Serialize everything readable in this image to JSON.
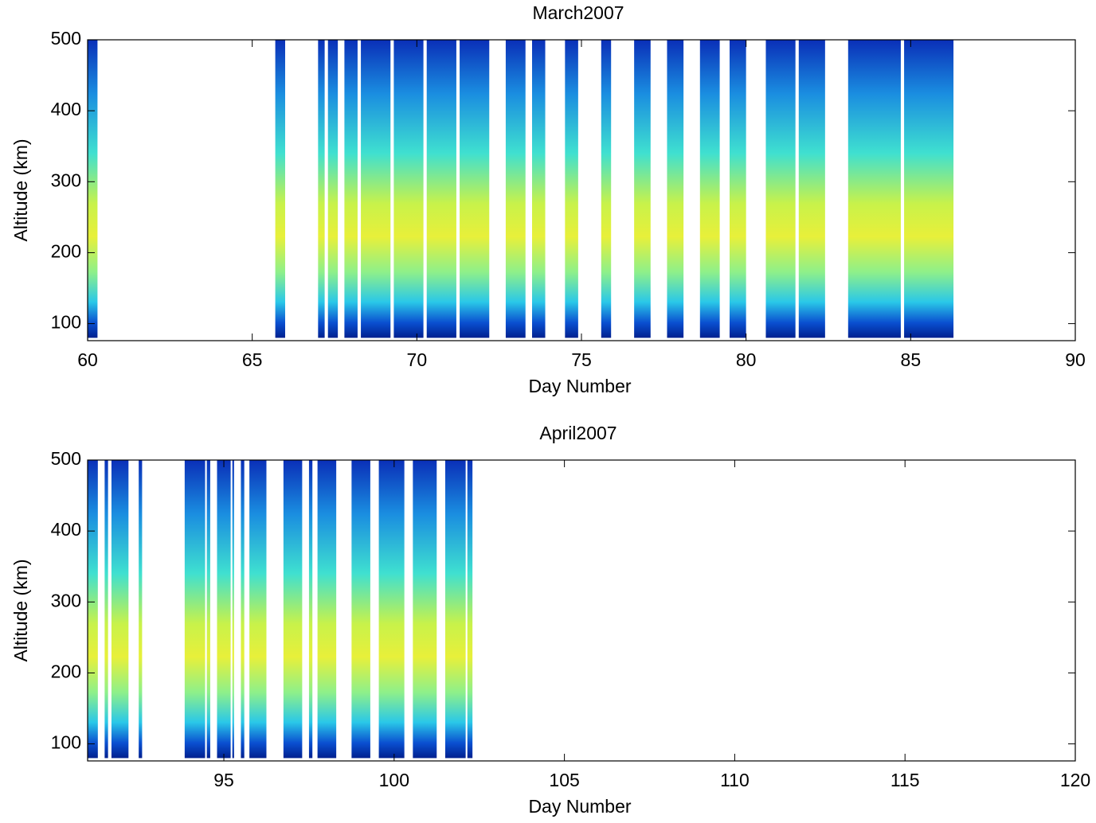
{
  "chart_data": [
    {
      "type": "heatmap",
      "title": "March2007",
      "x_label": "Day Number",
      "y_label": "Altitude (km)",
      "xlim": [
        60,
        90
      ],
      "xticks": [
        60,
        65,
        70,
        75,
        80,
        85,
        90
      ],
      "ylim": [
        76,
        500
      ],
      "yticks": [
        100,
        200,
        300,
        400,
        500
      ],
      "altitude_extent": [
        80,
        500
      ],
      "x_intervals": [
        [
          60.0,
          60.3
        ],
        [
          65.7,
          66.0
        ],
        [
          67.0,
          67.2
        ],
        [
          67.3,
          67.6
        ],
        [
          67.8,
          68.2
        ],
        [
          68.3,
          69.2
        ],
        [
          69.3,
          70.2
        ],
        [
          70.3,
          71.2
        ],
        [
          71.3,
          72.2
        ],
        [
          72.7,
          73.3
        ],
        [
          73.5,
          73.9
        ],
        [
          74.5,
          74.9
        ],
        [
          75.6,
          75.9
        ],
        [
          76.6,
          77.1
        ],
        [
          77.6,
          78.1
        ],
        [
          78.6,
          79.2
        ],
        [
          79.5,
          80.0
        ],
        [
          80.6,
          81.5
        ],
        [
          81.6,
          82.4
        ],
        [
          83.1,
          84.7
        ],
        [
          84.8,
          86.3
        ]
      ]
    },
    {
      "type": "heatmap",
      "title": "April2007",
      "x_label": "Day Number",
      "y_label": "Altitude (km)",
      "xlim": [
        91,
        120
      ],
      "xticks": [
        95,
        100,
        105,
        110,
        115,
        120
      ],
      "ylim": [
        76,
        500
      ],
      "yticks": [
        100,
        200,
        300,
        400,
        500
      ],
      "altitude_extent": [
        80,
        500
      ],
      "x_intervals": [
        [
          91.0,
          91.3
        ],
        [
          91.5,
          91.6
        ],
        [
          91.7,
          92.2
        ],
        [
          92.5,
          92.6
        ],
        [
          93.85,
          94.45
        ],
        [
          94.5,
          94.6
        ],
        [
          94.8,
          95.2
        ],
        [
          95.25,
          95.3
        ],
        [
          95.5,
          95.6
        ],
        [
          95.75,
          96.25
        ],
        [
          96.75,
          97.3
        ],
        [
          97.5,
          97.6
        ],
        [
          97.75,
          98.3
        ],
        [
          98.75,
          99.3
        ],
        [
          99.55,
          100.3
        ],
        [
          100.55,
          101.25
        ],
        [
          101.5,
          102.1
        ],
        [
          102.15,
          102.3
        ]
      ]
    }
  ]
}
